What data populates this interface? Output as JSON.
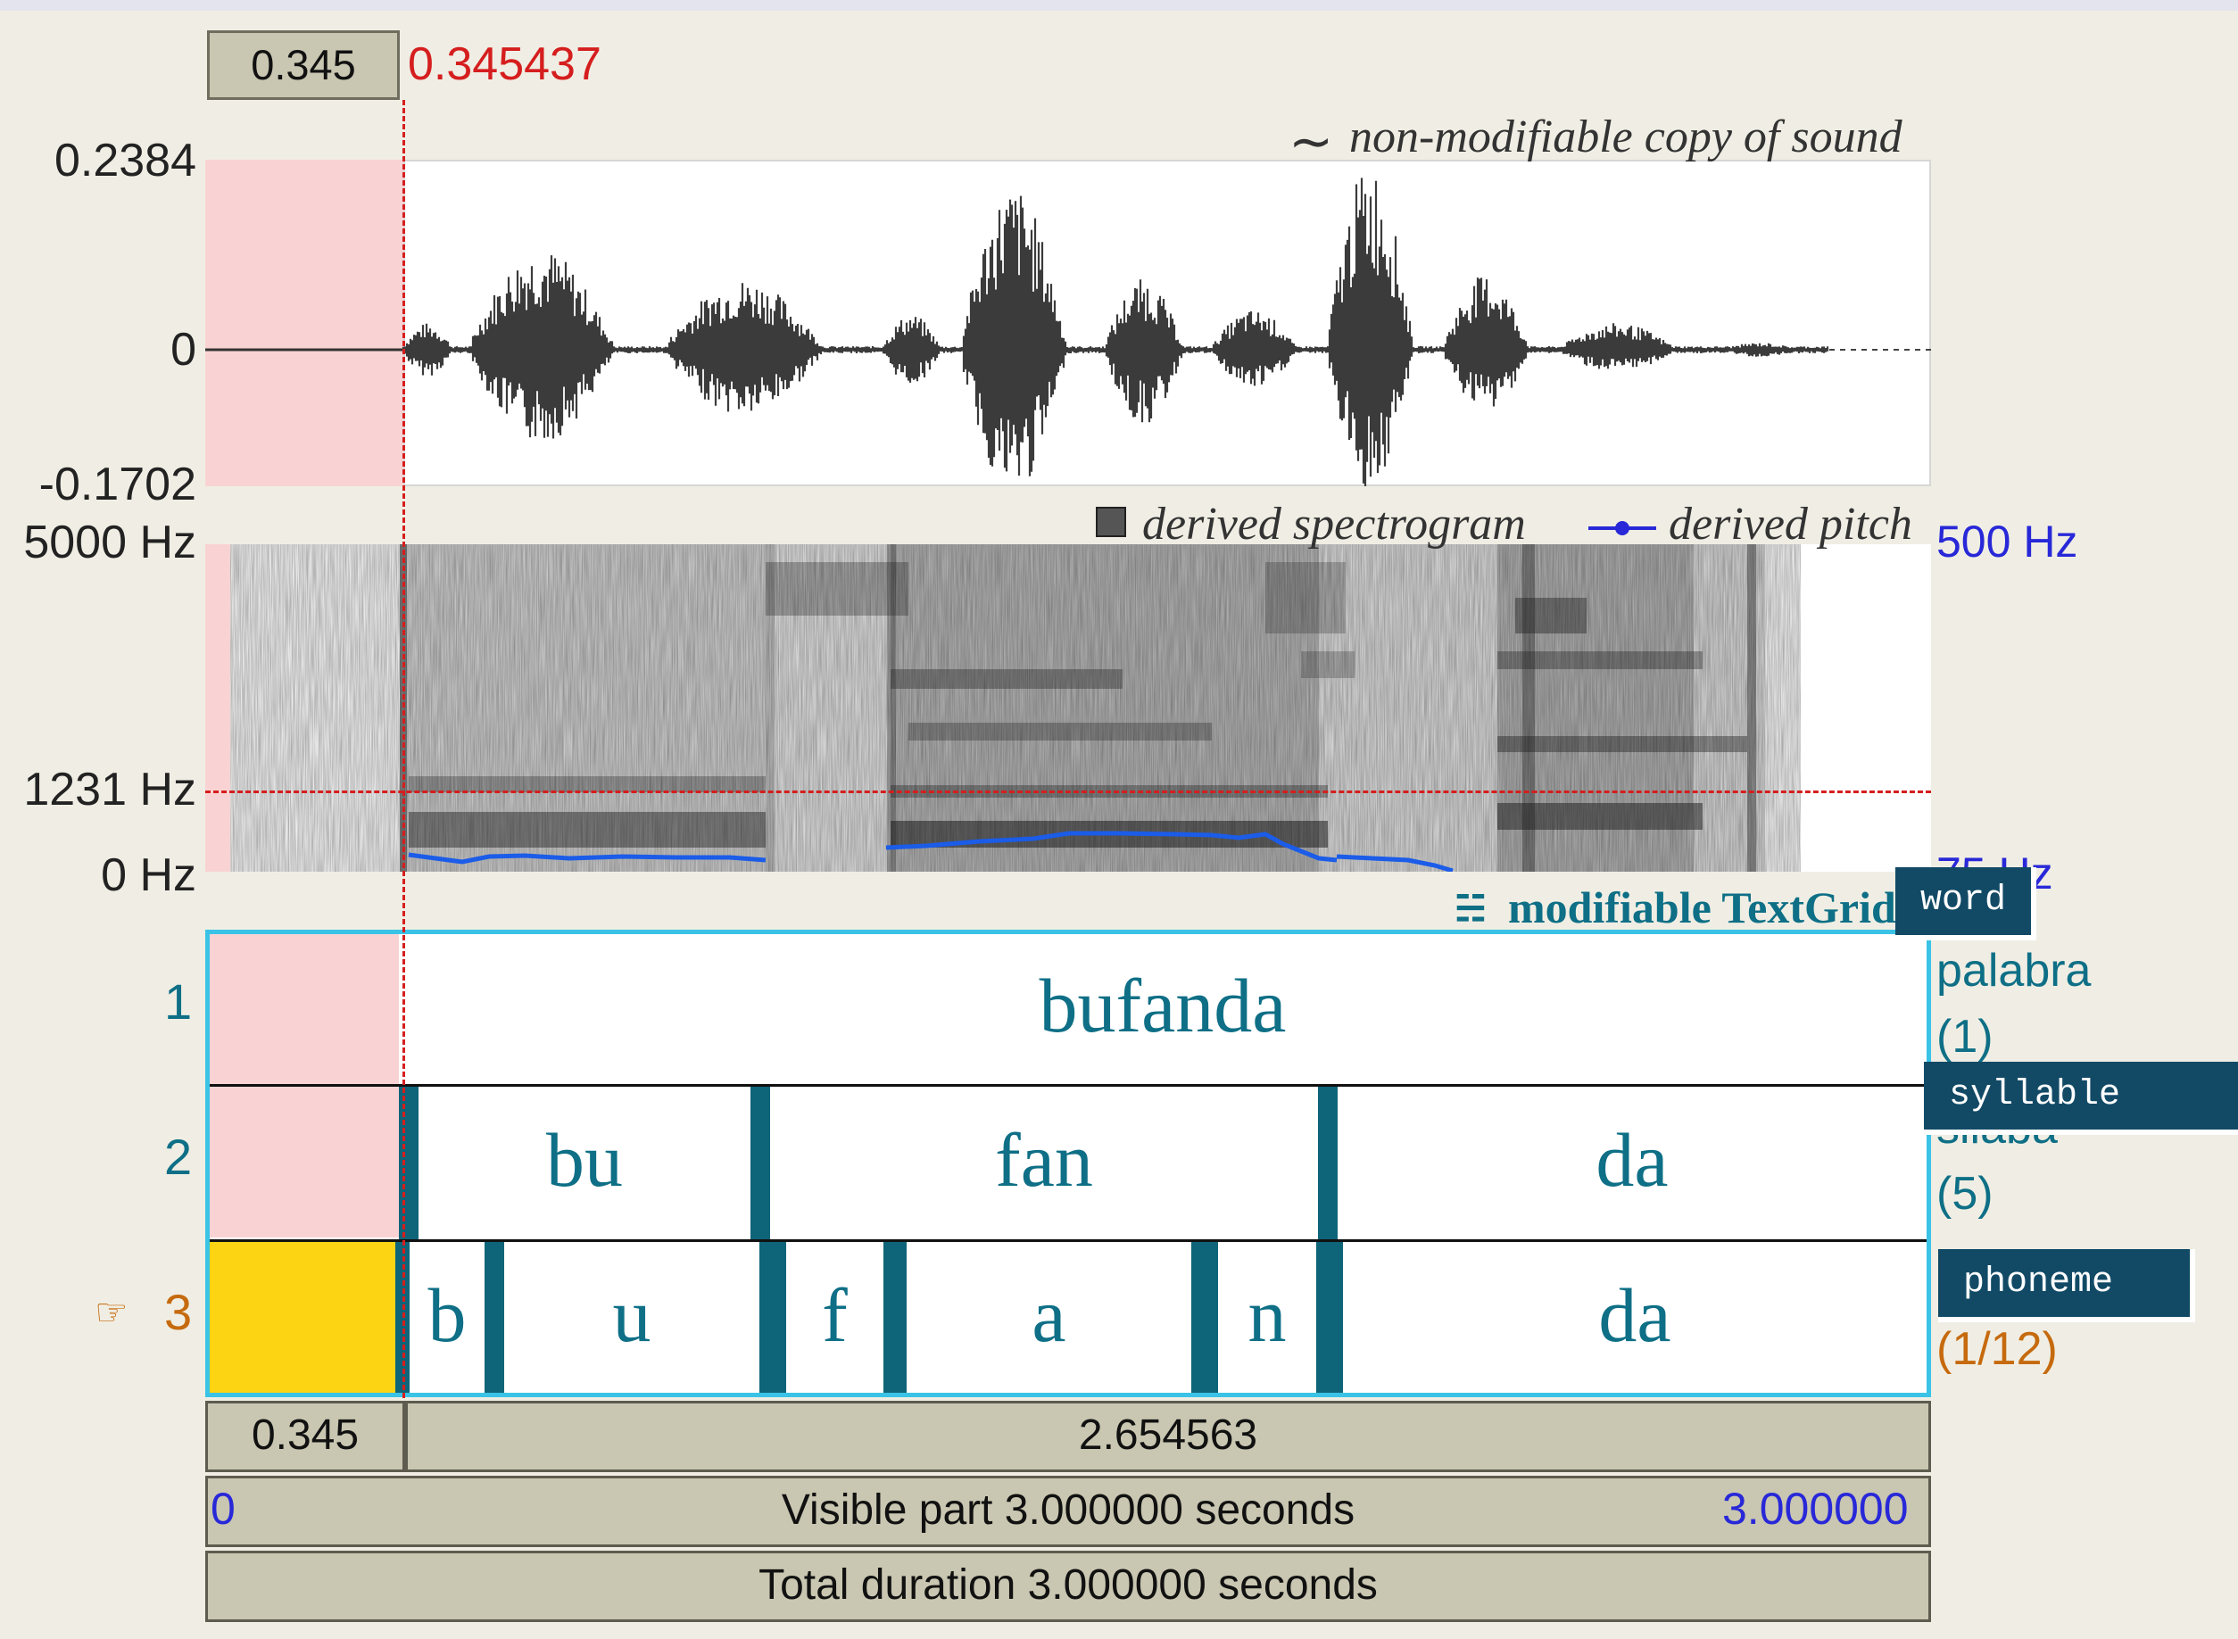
{
  "cursor": {
    "time_box": "0.345",
    "time_precise": "0.345437"
  },
  "waveform": {
    "annotation": "non-modifiable copy of sound",
    "annotation_icon": "tilde-icon",
    "y_max": "0.2384",
    "y_zero": "0",
    "y_min": "-0.1702"
  },
  "spectrogram": {
    "annotation": "derived spectrogram",
    "annotation_icon": "spectrogram-icon",
    "pitch_annotation": "derived pitch",
    "pitch_icon": "pitch-line-icon",
    "freq_max": "5000 Hz",
    "freq_cursor": "1231 Hz",
    "freq_min": "0 Hz",
    "pitch_max": "500 Hz",
    "pitch_min": "75 Hz"
  },
  "textgrid": {
    "annotation": "modifiable TextGrid",
    "annotation_icon": "textgrid-icon",
    "tiers": [
      {
        "number": "1",
        "name_tooltip": "word",
        "name": "palabra",
        "count": "(1)",
        "intervals": [
          "bufanda"
        ]
      },
      {
        "number": "2",
        "name_tooltip": "syllable",
        "name": "silaba",
        "count": "(5)",
        "intervals": [
          "bu",
          "fan",
          "da"
        ]
      },
      {
        "number": "3",
        "name_tooltip": "phoneme",
        "name": "",
        "count": "(1/12)",
        "selected_icon": "pointing-hand-icon",
        "intervals": [
          "b",
          "u",
          "f",
          "a",
          "n",
          "da"
        ]
      }
    ]
  },
  "bottom": {
    "left_segment": "0.345",
    "right_segment": "2.654563",
    "visible_start": "0",
    "visible_label": "Visible part 3.000000 seconds",
    "visible_end": "3.000000",
    "total_label": "Total duration 3.000000 seconds"
  },
  "colors": {
    "selection_pink": "#f9d3d3",
    "selected_interval": "#fcd413",
    "cursor_red": "#d51e1e",
    "pitch_blue": "#2828d8",
    "tier_teal": "#0e6f86",
    "tier_frame": "#3ac3e6"
  }
}
